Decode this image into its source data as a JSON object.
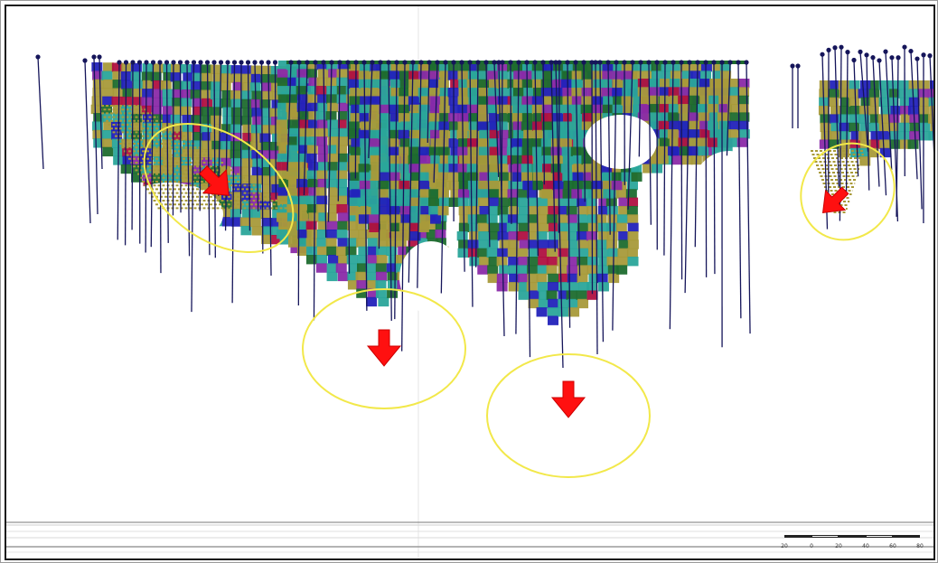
{
  "view": {
    "background": "#ffffff",
    "border_color": "#1a1a1a"
  },
  "palette": {
    "teal": "#2aa59a",
    "olive": "#a89a3a",
    "dark_green": "#1d6b2e",
    "blue": "#2222bb",
    "purple": "#8a2aa8",
    "crimson": "#b01040",
    "drillhole": "#15155a",
    "annotation_ellipse": "#f2e84a",
    "annotation_arrow": "#ff1010"
  },
  "icons": {
    "arrow": "arrow-icon",
    "ellipse": "highlight-ellipse-icon"
  },
  "scale_bar": {
    "labels": [
      "20",
      "0",
      "20",
      "40",
      "60",
      "80"
    ]
  }
}
